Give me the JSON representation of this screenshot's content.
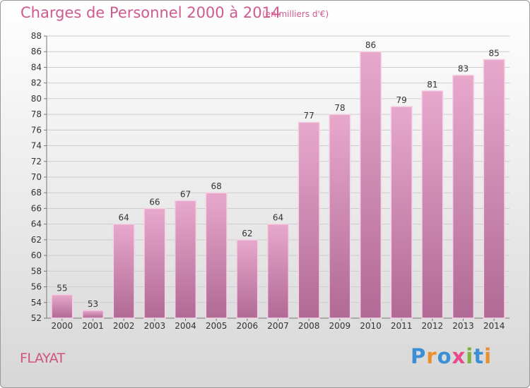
{
  "header": {
    "title": "Charges de Personnel 2000 à 2014",
    "subtitle": "(en milliers d'€)"
  },
  "footer": {
    "place": "FLAYAT",
    "logo": {
      "letters": [
        "P",
        "r",
        "o",
        "x",
        "i",
        "t",
        "i"
      ],
      "colors": [
        "#3b8fd4",
        "#e8912c",
        "#3b8fd4",
        "#e84a8c",
        "#7cb342",
        "#3b8fd4",
        "#e8912c"
      ]
    }
  },
  "colors": {
    "bar_top": "#e8a8cc",
    "bar_bottom": "#b06a95",
    "bar_edge": "#f4d3e5",
    "grid": "#cccccc",
    "axis": "#777777"
  },
  "chart_data": {
    "type": "bar",
    "title": "Charges de Personnel 2000 à 2014",
    "subtitle": "(en milliers d'€)",
    "categories": [
      "2000",
      "2001",
      "2002",
      "2003",
      "2004",
      "2005",
      "2006",
      "2007",
      "2008",
      "2009",
      "2010",
      "2011",
      "2012",
      "2013",
      "2014"
    ],
    "values": [
      55,
      53,
      64,
      66,
      67,
      68,
      62,
      64,
      77,
      78,
      86,
      79,
      81,
      83,
      85
    ],
    "ylim": [
      52,
      88
    ],
    "yticks": [
      52,
      54,
      56,
      58,
      60,
      62,
      64,
      66,
      68,
      70,
      72,
      74,
      76,
      78,
      80,
      82,
      84,
      86,
      88
    ],
    "grid": true,
    "data_labels": true
  }
}
